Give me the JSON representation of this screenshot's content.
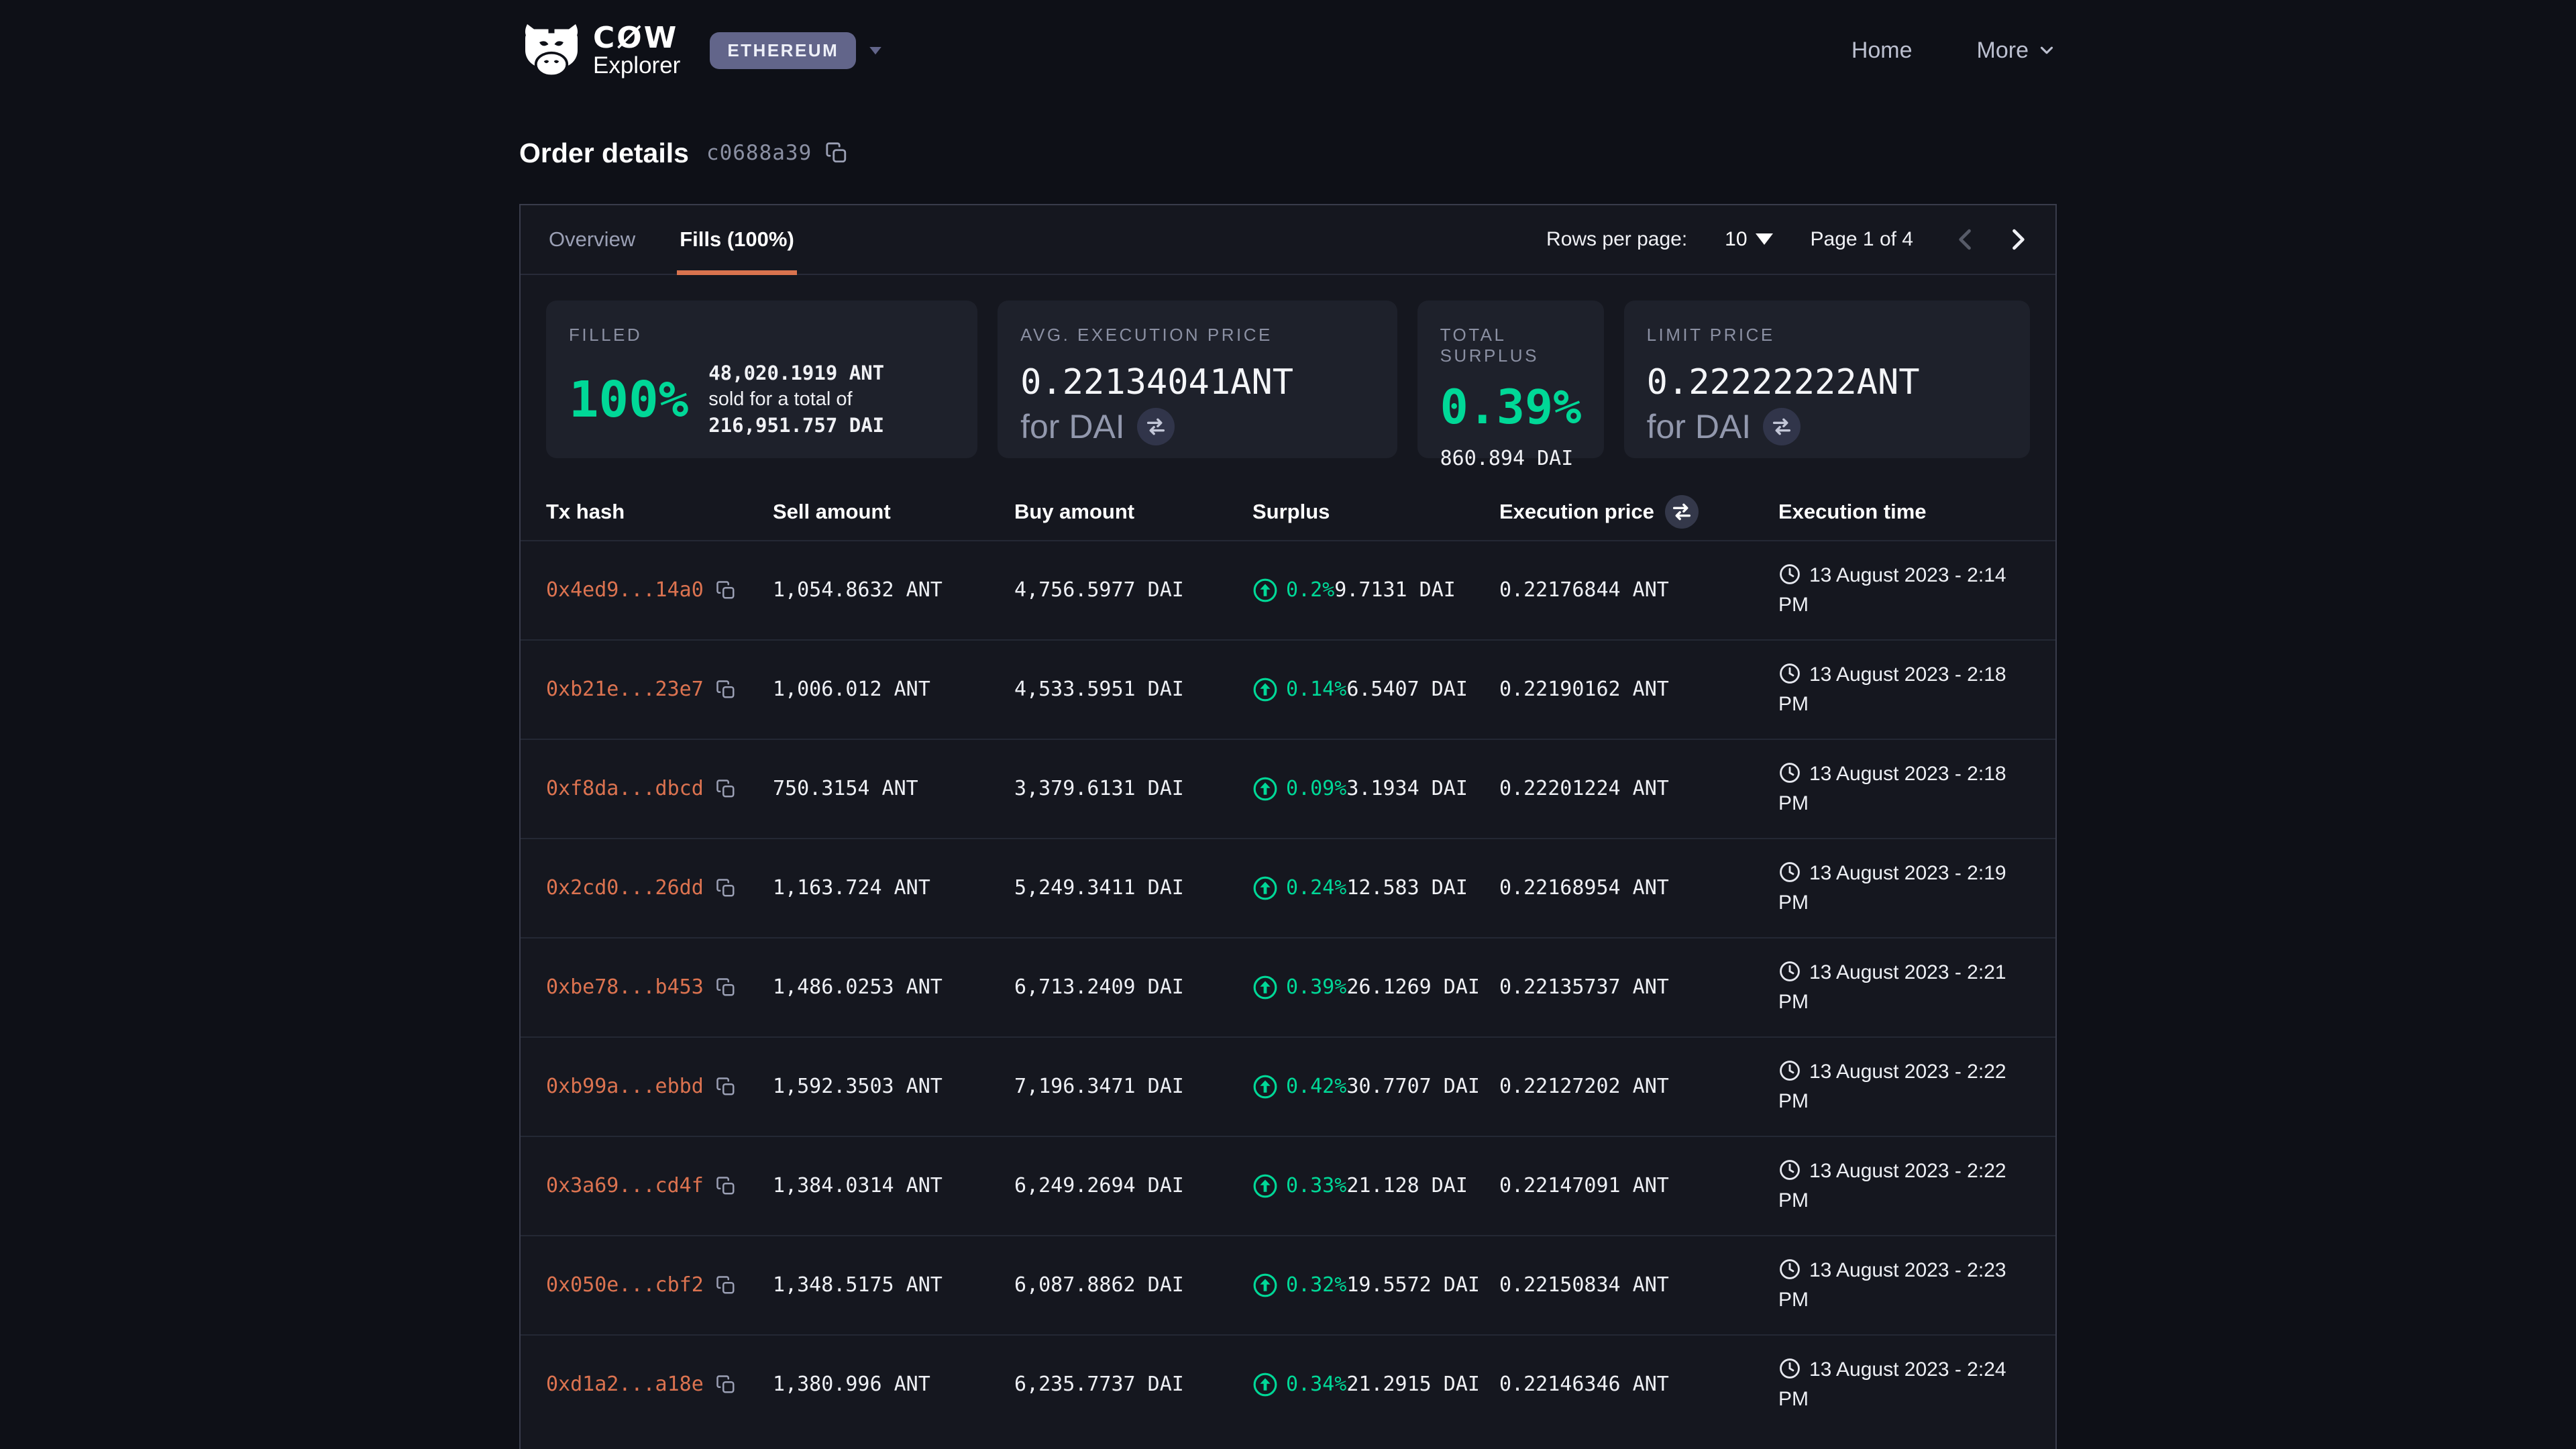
{
  "header": {
    "brand_top": "CØW",
    "brand_bottom": "Explorer",
    "network_badge": "ETHEREUM",
    "nav": {
      "home": "Home",
      "more": "More"
    }
  },
  "page": {
    "title": "Order details",
    "order_id_short": "c0688a39"
  },
  "tabs": {
    "overview": "Overview",
    "fills": "Fills (100%)"
  },
  "pagination": {
    "rows_per_page_label": "Rows per page:",
    "rows_per_page_value": "10",
    "page_indicator": "Page 1 of 4"
  },
  "summary_cards": {
    "filled": {
      "label": "FILLED",
      "percent": "100%",
      "percent_width": "100%",
      "amount_sold": "48,020.1919 ANT",
      "total_prefix": "sold for a total of ",
      "total_value": "216,951.757 DAI"
    },
    "avg_execution_price": {
      "label": "AVG. EXECUTION PRICE",
      "value": "0.22134041ANT",
      "for_label": "for DAI"
    },
    "total_surplus": {
      "label": "TOTAL SURPLUS",
      "percent": "0.39%",
      "amount": "860.894 DAI"
    },
    "limit_price": {
      "label": "LIMIT PRICE",
      "value": "0.22222222ANT",
      "for_label": "for DAI"
    }
  },
  "table": {
    "columns": {
      "tx_hash": "Tx hash",
      "sell_amount": "Sell amount",
      "buy_amount": "Buy amount",
      "surplus": "Surplus",
      "execution_price": "Execution price",
      "execution_time": "Execution time"
    },
    "rows": [
      {
        "tx_hash": "0x4ed9...14a0",
        "sell": "1,054.8632 ANT",
        "buy": "4,756.5977 DAI",
        "surplus_pct": "0.2%",
        "surplus_amt": "9.7131 DAI",
        "price": "0.22176844 ANT",
        "time": "13 August 2023 - 2:14 PM"
      },
      {
        "tx_hash": "0xb21e...23e7",
        "sell": "1,006.012 ANT",
        "buy": "4,533.5951 DAI",
        "surplus_pct": "0.14%",
        "surplus_amt": "6.5407 DAI",
        "price": "0.22190162 ANT",
        "time": "13 August 2023 - 2:18 PM"
      },
      {
        "tx_hash": "0xf8da...dbcd",
        "sell": "750.3154 ANT",
        "buy": "3,379.6131 DAI",
        "surplus_pct": "0.09%",
        "surplus_amt": "3.1934 DAI",
        "price": "0.22201224 ANT",
        "time": "13 August 2023 - 2:18 PM"
      },
      {
        "tx_hash": "0x2cd0...26dd",
        "sell": "1,163.724 ANT",
        "buy": "5,249.3411 DAI",
        "surplus_pct": "0.24%",
        "surplus_amt": "12.583 DAI",
        "price": "0.22168954 ANT",
        "time": "13 August 2023 - 2:19 PM"
      },
      {
        "tx_hash": "0xbe78...b453",
        "sell": "1,486.0253 ANT",
        "buy": "6,713.2409 DAI",
        "surplus_pct": "0.39%",
        "surplus_amt": "26.1269 DAI",
        "price": "0.22135737 ANT",
        "time": "13 August 2023 - 2:21 PM"
      },
      {
        "tx_hash": "0xb99a...ebbd",
        "sell": "1,592.3503 ANT",
        "buy": "7,196.3471 DAI",
        "surplus_pct": "0.42%",
        "surplus_amt": "30.7707 DAI",
        "price": "0.22127202 ANT",
        "time": "13 August 2023 - 2:22 PM"
      },
      {
        "tx_hash": "0x3a69...cd4f",
        "sell": "1,384.0314 ANT",
        "buy": "6,249.2694 DAI",
        "surplus_pct": "0.33%",
        "surplus_amt": "21.128 DAI",
        "price": "0.22147091 ANT",
        "time": "13 August 2023 - 2:22 PM"
      },
      {
        "tx_hash": "0x050e...cbf2",
        "sell": "1,348.5175 ANT",
        "buy": "6,087.8862 DAI",
        "surplus_pct": "0.32%",
        "surplus_amt": "19.5572 DAI",
        "price": "0.22150834 ANT",
        "time": "13 August 2023 - 2:23 PM"
      },
      {
        "tx_hash": "0xd1a2...a18e",
        "sell": "1,380.996 ANT",
        "buy": "6,235.7737 DAI",
        "surplus_pct": "0.34%",
        "surplus_amt": "21.2915 DAI",
        "price": "0.22146346 ANT",
        "time": "13 August 2023 - 2:24 PM"
      }
    ]
  },
  "colors": {
    "accent_green": "#00d897",
    "link_orange": "#dc7350",
    "tab_underline_orange": "#d9734e",
    "network_badge_bg": "#62658a",
    "page_bg": "#0e1017",
    "panel_bg": "#15171f",
    "card_bg": "#1e212b"
  }
}
